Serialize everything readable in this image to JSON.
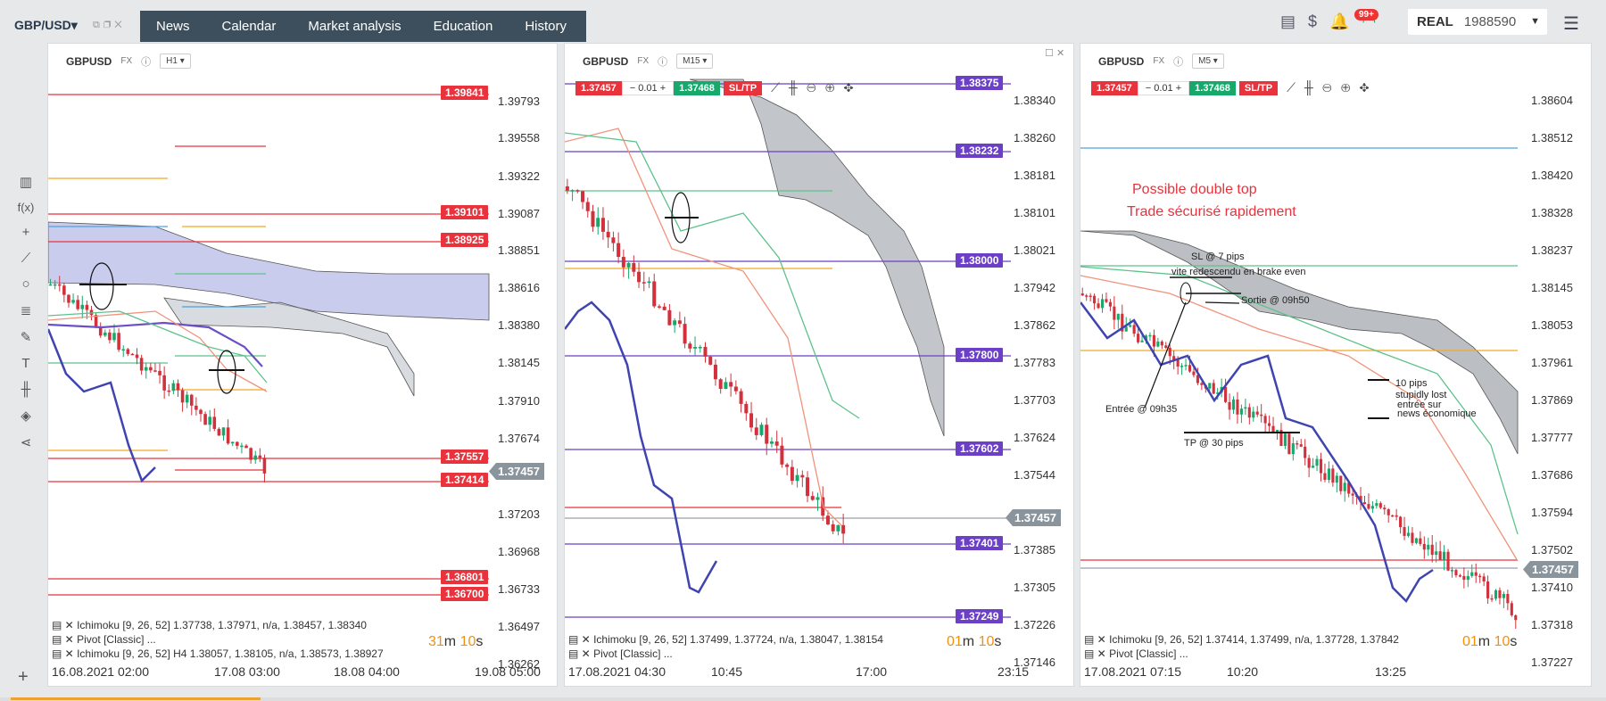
{
  "header": {
    "symbol": "GBP/USD",
    "nav": [
      "News",
      "Calendar",
      "Market analysis",
      "Education",
      "History"
    ],
    "notifications_badge": "99+",
    "account_type": "REAL",
    "account_value": "1988590"
  },
  "colors": {
    "sell": "#e8323c",
    "buy": "#17a86b",
    "nav_bg": "#3d4f5c",
    "purple_label": "#6b3fc7",
    "timer": "#f09010"
  },
  "toolbar_icons": [
    "bars-icon",
    "fx-icon",
    "crosshair-icon",
    "pencil-icon",
    "circle-icon",
    "fib-icon",
    "brush-icon",
    "text-icon",
    "candles-icon",
    "layers-icon",
    "share-icon"
  ],
  "panels": [
    {
      "symbol": "GBPUSD",
      "market": "FX",
      "timeframe": "H1",
      "y_ticks": [
        "1.39793",
        "1.39558",
        "1.39322",
        "1.39087",
        "1.38851",
        "1.38616",
        "1.38380",
        "1.38145",
        "1.37910",
        "1.37674",
        "1.37457",
        "1.37203",
        "1.36968",
        "1.36733",
        "1.36497",
        "1.36262"
      ],
      "x_ticks": [
        "16.08.2021 02:00",
        "17.08 03:00",
        "18.08 04:00",
        "19.08 05:00"
      ],
      "price_labels": [
        "1.39841",
        "1.39101",
        "1.38925",
        "1.37557",
        "1.37414",
        "1.36801",
        "1.36700"
      ],
      "current_price": "1.37457",
      "indicators": [
        "Ichimoku [9, 26, 52] 1.37738, 1.37971, n/a, 1.38457, 1.38340",
        "Pivot [Classic] ...",
        "Ichimoku [9, 26, 52] H4 1.38057, 1.38105, n/a, 1.38573, 1.38927"
      ],
      "timer_value": "31",
      "timer_unit1": "m",
      "timer_value2": "10",
      "timer_unit2": "s"
    },
    {
      "symbol": "GBPUSD",
      "market": "FX",
      "timeframe": "M15",
      "trade": {
        "sell": "1.37457",
        "lot": "0.01",
        "buy": "1.37468",
        "sltp": "SL/TP"
      },
      "y_ticks": [
        "1.38340",
        "1.38260",
        "1.38181",
        "1.38101",
        "1.38021",
        "1.37942",
        "1.37862",
        "1.37783",
        "1.37703",
        "1.37624",
        "1.37544",
        "1.37457",
        "1.37385",
        "1.37305",
        "1.37226",
        "1.37146"
      ],
      "x_ticks": [
        "17.08.2021 04:30",
        "10:45",
        "17:00",
        "23:15"
      ],
      "price_labels": [
        "1.38375",
        "1.38232",
        "1.38000",
        "1.37800",
        "1.37602",
        "1.37401",
        "1.37249"
      ],
      "current_price": "1.37457",
      "indicators": [
        "Ichimoku [9, 26, 52] 1.37499, 1.37724, n/a, 1.38047, 1.38154",
        "Pivot [Classic] ..."
      ],
      "timer_value": "01",
      "timer_unit1": "m",
      "timer_value2": "10",
      "timer_unit2": "s"
    },
    {
      "symbol": "GBPUSD",
      "market": "FX",
      "timeframe": "M5",
      "trade": {
        "sell": "1.37457",
        "lot": "0.01",
        "buy": "1.37468",
        "sltp": "SL/TP"
      },
      "y_ticks": [
        "1.38604",
        "1.38512",
        "1.38420",
        "1.38328",
        "1.38237",
        "1.38145",
        "1.38053",
        "1.37961",
        "1.37869",
        "1.37777",
        "1.37686",
        "1.37594",
        "1.37502",
        "1.37457",
        "1.37410",
        "1.37318",
        "1.37227"
      ],
      "x_ticks": [
        "17.08.2021 07:15",
        "10:20",
        "13:25"
      ],
      "current_price": "1.37457",
      "annotations": {
        "title1": "Possible double top",
        "title2": "Trade sécurisé rapidement",
        "sl": "SL @ 7 pips",
        "sl2": "vite redescendu en brake even",
        "sortie": "Sortie @ 09h50",
        "entree": "Entrée @ 09h35",
        "tp": "TP @ 30 pips",
        "note1": "10 pips",
        "note2": "stupidly lost",
        "note3": "entrée sur",
        "note4": "news économique"
      },
      "indicators": [
        "Ichimoku [9, 26, 52] 1.37414, 1.37499, n/a, 1.37728, 1.37842",
        "Pivot [Classic] ..."
      ],
      "timer_value": "01",
      "timer_unit1": "m",
      "timer_value2": "10",
      "timer_unit2": "s"
    }
  ]
}
